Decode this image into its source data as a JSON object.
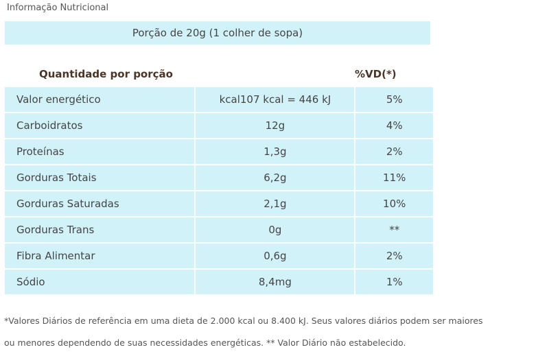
{
  "title": "Informação Nutricional",
  "portion": "Porção de 20g (1 colher de sopa)",
  "headers": {
    "quantity": "Quantidade por porção",
    "vd": "%VD(*)"
  },
  "rows": [
    {
      "name": "Valor energético",
      "qty": "kcal107 kcal = 446 kJ",
      "vd": "5%"
    },
    {
      "name": "Carboidratos",
      "qty": "12g",
      "vd": "4%"
    },
    {
      "name": "Proteínas",
      "qty": "1,3g",
      "vd": "2%"
    },
    {
      "name": "Gorduras Totais",
      "qty": "6,2g",
      "vd": "11%"
    },
    {
      "name": "Gorduras Saturadas",
      "qty": "2,1g",
      "vd": "10%"
    },
    {
      "name": "Gorduras Trans",
      "qty": "0g",
      "vd": "**"
    },
    {
      "name": "Fibra Alimentar",
      "qty": "0,6g",
      "vd": "2%"
    },
    {
      "name": "Sódio",
      "qty": "8,4mg",
      "vd": "1%"
    }
  ],
  "footnote": {
    "line1": "*Valores Diários de referência em uma dieta de 2.000 kcal ou 8.400 kJ. Seus valores diários podem ser maiores",
    "line2": "ou menores dependendo de suas necessidades energéticas. ** Valor Diário não estabelecido."
  },
  "colors": {
    "row_background": "#d2f2fa",
    "header_text": "#4a3526"
  }
}
